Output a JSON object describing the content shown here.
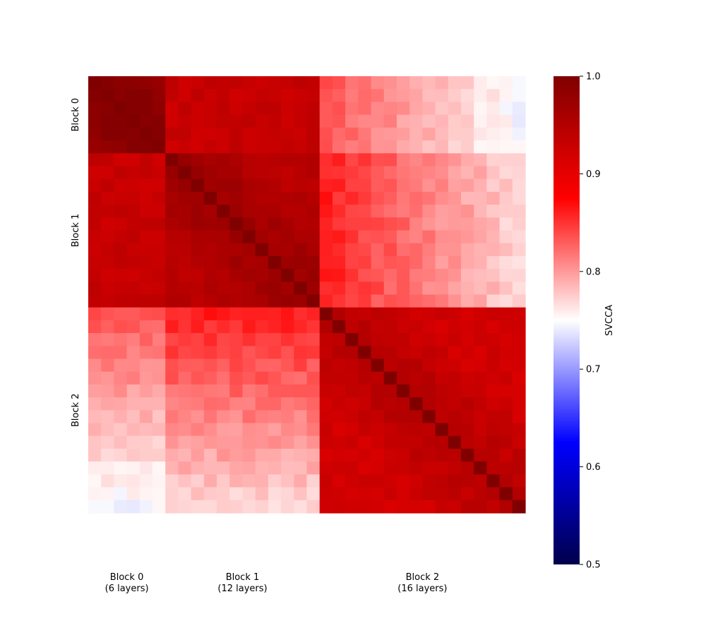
{
  "chart_data": {
    "type": "heatmap",
    "title": "",
    "colorbar": {
      "label": "SVCCA",
      "range": [
        0.5,
        1.0
      ],
      "ticks": [
        "0.5",
        "0.6",
        "0.7",
        "0.8",
        "0.9",
        "1.0"
      ],
      "colormap": "seismic (blue-white-red)",
      "stops": [
        "#00004c",
        "#0000ff",
        "#ffffff",
        "#ff0000",
        "#800000"
      ]
    },
    "blocks": [
      {
        "name": "Block 0",
        "layers": 6,
        "x_label_line1": "Block 0",
        "x_label_line2": "(6 layers)"
      },
      {
        "name": "Block 1",
        "layers": 12,
        "x_label_line1": "Block 1",
        "x_label_line2": "(12 layers)"
      },
      {
        "name": "Block 2",
        "layers": 16,
        "x_label_line1": "Block 2",
        "x_label_line2": "(16 layers)"
      }
    ],
    "y_labels": [
      "Block 0",
      "Block 1",
      "Block 2"
    ],
    "total_layers": 34,
    "block_similarity": [
      [
        0.975,
        0.93,
        0.835
      ],
      [
        0.93,
        0.945,
        0.86
      ],
      [
        0.835,
        0.86,
        0.92
      ]
    ],
    "diagonal": 1.0,
    "grid": false
  }
}
